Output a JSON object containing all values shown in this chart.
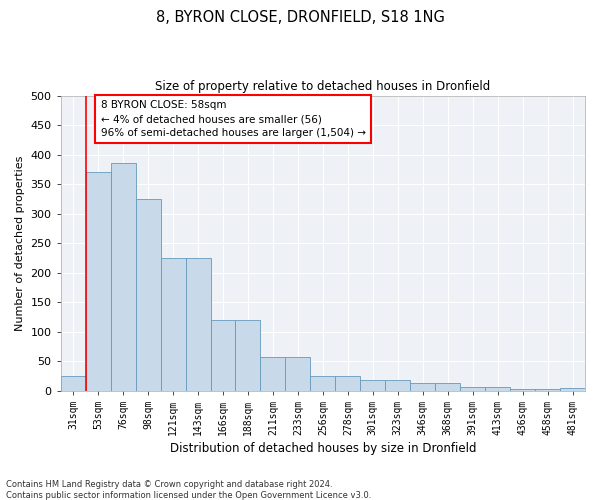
{
  "title": "8, BYRON CLOSE, DRONFIELD, S18 1NG",
  "subtitle": "Size of property relative to detached houses in Dronfield",
  "xlabel": "Distribution of detached houses by size in Dronfield",
  "ylabel": "Number of detached properties",
  "bar_color": "#c8daea",
  "bar_edge_color": "#6699bb",
  "bg_color": "#eef2f7",
  "categories": [
    "31sqm",
    "53sqm",
    "76sqm",
    "98sqm",
    "121sqm",
    "143sqm",
    "166sqm",
    "188sqm",
    "211sqm",
    "233sqm",
    "256sqm",
    "278sqm",
    "301sqm",
    "323sqm",
    "346sqm",
    "368sqm",
    "391sqm",
    "413sqm",
    "436sqm",
    "458sqm",
    "481sqm"
  ],
  "values": [
    25,
    370,
    385,
    325,
    225,
    225,
    120,
    120,
    57,
    57,
    25,
    25,
    18,
    18,
    13,
    13,
    7,
    7,
    3,
    3,
    5
  ],
  "ylim": [
    0,
    500
  ],
  "yticks": [
    0,
    50,
    100,
    150,
    200,
    250,
    300,
    350,
    400,
    450,
    500
  ],
  "red_line_x": 1.0,
  "annotation_line1": "8 BYRON CLOSE: 58sqm",
  "annotation_line2": "← 4% of detached houses are smaller (56)",
  "annotation_line3": "96% of semi-detached houses are larger (1,504) →",
  "footnote": "Contains HM Land Registry data © Crown copyright and database right 2024.\nContains public sector information licensed under the Open Government Licence v3.0."
}
